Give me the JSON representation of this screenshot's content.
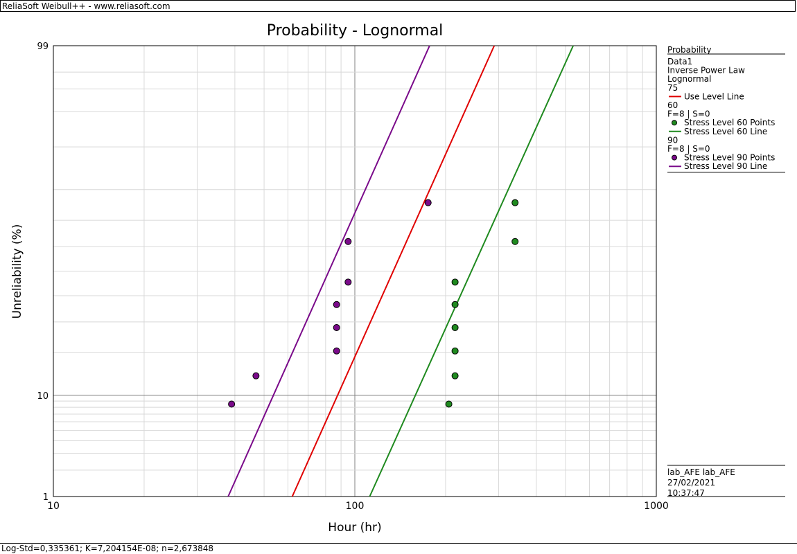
{
  "window": {
    "title": "ReliaSoft Weibull++ - www.reliasoft.com"
  },
  "status_bar": {
    "text": "Log-Std=0,335361; K=7,204154E-08; n=2,673848"
  },
  "chart_data": {
    "type": "scatter",
    "title": "Probability - Lognormal",
    "xlabel": "Hour (hr)",
    "ylabel": "Unreliability (%)",
    "x_scale": "log",
    "y_scale": "lognormal-probability",
    "xlim": [
      10,
      1000
    ],
    "ylim": [
      1,
      99
    ],
    "x_ticks": [
      "10",
      "100",
      "1000"
    ],
    "y_ticks": [
      "1",
      "10",
      "99"
    ],
    "grid": true,
    "legend_position": "right",
    "legend": {
      "header": "Probability",
      "items": [
        {
          "kind": "text",
          "text": "Data1"
        },
        {
          "kind": "text",
          "text": "Inverse Power Law"
        },
        {
          "kind": "text",
          "text": "Lognormal"
        },
        {
          "kind": "text",
          "text": "75"
        },
        {
          "kind": "line",
          "text": "Use Level Line",
          "color": "#e00000"
        },
        {
          "kind": "text",
          "text": "60"
        },
        {
          "kind": "text",
          "text": "F=8 | S=0"
        },
        {
          "kind": "point",
          "text": "Stress Level 60 Points",
          "color": "#1f8a1f"
        },
        {
          "kind": "line",
          "text": "Stress Level 60 Line",
          "color": "#1f8a1f"
        },
        {
          "kind": "text",
          "text": "90"
        },
        {
          "kind": "text",
          "text": "F=8 | S=0"
        },
        {
          "kind": "point",
          "text": "Stress Level 90 Points",
          "color": "#7a0a8a"
        },
        {
          "kind": "line",
          "text": "Stress Level 90 Line",
          "color": "#7a0a8a"
        }
      ]
    },
    "footer": {
      "user": "lab_AFE lab_AFE",
      "date": "27/02/2021",
      "time": "10:37:47"
    },
    "series": [
      {
        "name": "Stress Level 60 Points",
        "kind": "points",
        "color": "#1f8a1f",
        "x": [
          205,
          215,
          215,
          215,
          215,
          215,
          340,
          340
        ],
        "y": [
          8.5,
          14.0,
          20.5,
          28.0,
          36.5,
          45.5,
          62.0,
          76.0
        ]
      },
      {
        "name": "Stress Level 90 Points",
        "kind": "points",
        "color": "#7a0a8a",
        "x": [
          39,
          47,
          87,
          87,
          87,
          95,
          95,
          175
        ],
        "y": [
          8.5,
          14.0,
          20.5,
          28.0,
          36.5,
          45.5,
          62.0,
          76.0
        ]
      },
      {
        "name": "Use Level Line",
        "kind": "line",
        "color": "#e00000",
        "x": [
          62,
          290
        ],
        "y": [
          1,
          99
        ]
      },
      {
        "name": "Stress Level 60 Line",
        "kind": "line",
        "color": "#1f8a1f",
        "x": [
          112,
          530
        ],
        "y": [
          1,
          99
        ]
      },
      {
        "name": "Stress Level 90 Line",
        "kind": "line",
        "color": "#7a0a8a",
        "x": [
          38,
          177
        ],
        "y": [
          1,
          99
        ]
      }
    ]
  }
}
